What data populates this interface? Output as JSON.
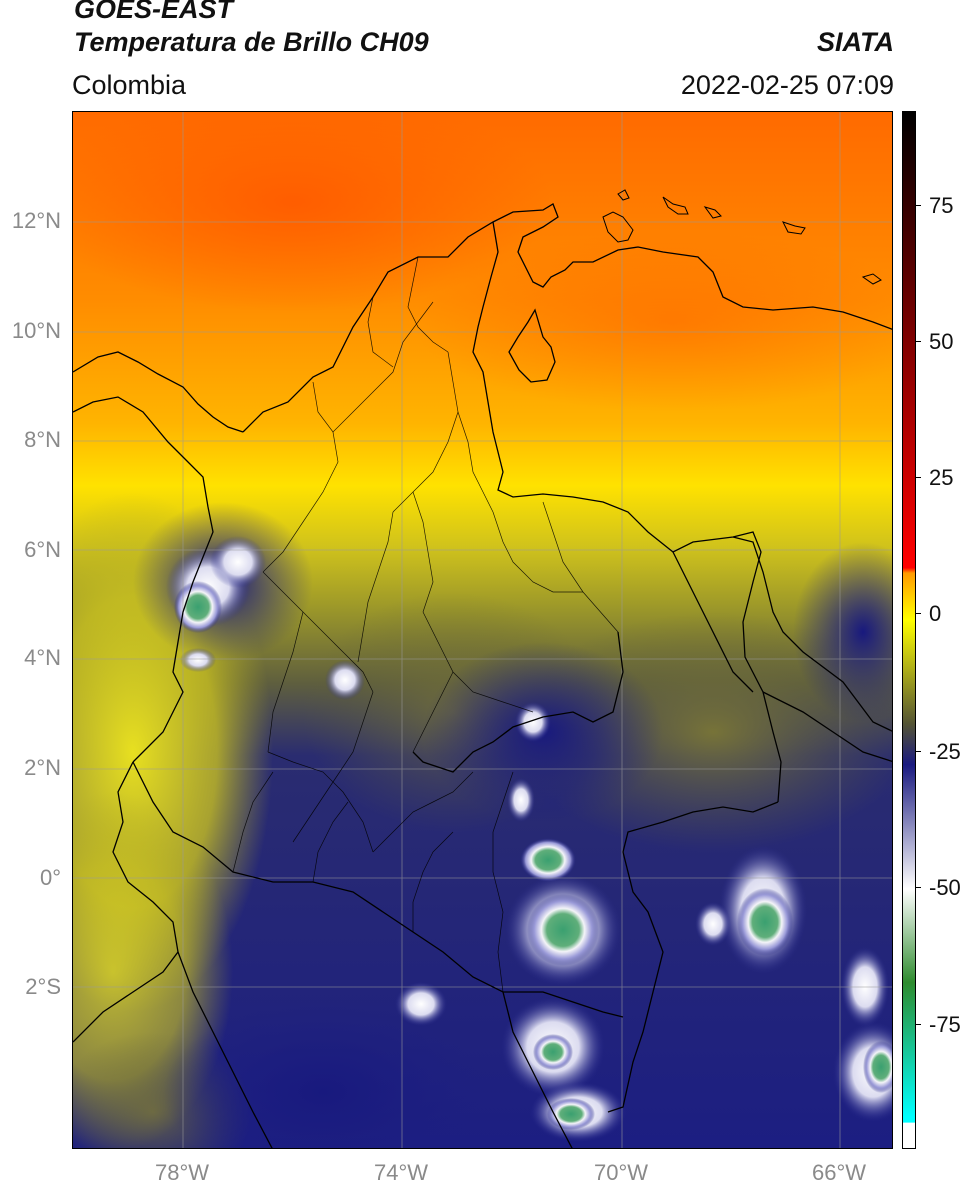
{
  "header": {
    "satellite": "GOES-EAST",
    "product": "Temperatura de Brillo CH09",
    "source": "SIATA",
    "region": "Colombia",
    "datetime": "2022-02-25 07:09"
  },
  "map": {
    "lat_ticks": [
      "12°N",
      "10°N",
      "8°N",
      "6°N",
      "4°N",
      "2°N",
      "0°",
      "2°S"
    ],
    "lon_ticks": [
      "78°W",
      "74°W",
      "70°W",
      "66°W"
    ],
    "colors": {
      "warm_north": "#ff7a00",
      "orange": "#ff9a00",
      "yellow": "#ffe600",
      "olive": "#a8a020",
      "dark_olive": "#5e5e3a",
      "navy": "#1c2080",
      "cloud_white": "#f4f4f8",
      "cloud_green": "#3aa070",
      "border": "#000000"
    }
  },
  "colorbar": {
    "ticks": [
      "75",
      "50",
      "25",
      "0",
      "-25",
      "-50",
      "-75"
    ],
    "stops": [
      {
        "color": "#000000"
      },
      {
        "color": "#ff0000"
      },
      {
        "color": "#ff9a00"
      },
      {
        "color": "#ffff00"
      },
      {
        "color": "#555533"
      },
      {
        "color": "#1a1a80"
      },
      {
        "color": "#ffffff"
      },
      {
        "color": "#2e8b2e"
      },
      {
        "color": "#00ffff"
      }
    ]
  }
}
